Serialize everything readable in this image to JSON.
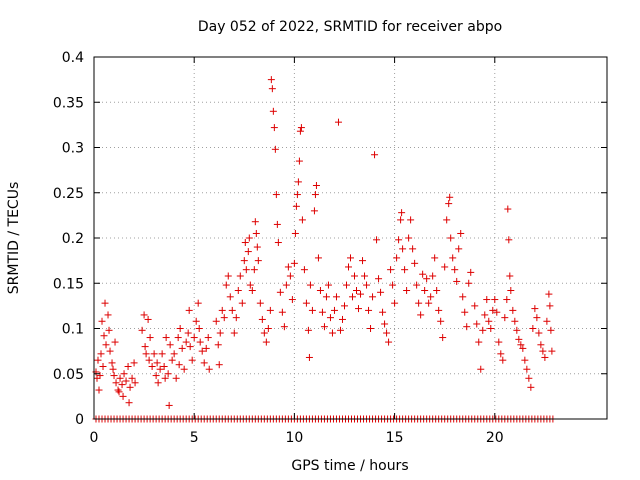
{
  "chart_data": {
    "type": "scatter",
    "title": "Day 052 of 2022, SRMTID for receiver abpo",
    "xlabel": "GPS time / hours",
    "ylabel": "SRMTID / TECUs",
    "xlim": [
      0,
      25.6
    ],
    "ylim": [
      0,
      0.4
    ],
    "x_ticks": [
      0,
      5,
      10,
      15,
      20
    ],
    "x_tick_labels": [
      "0",
      "5",
      "10",
      "15",
      "20"
    ],
    "y_ticks": [
      0,
      0.05,
      0.1,
      0.15,
      0.2,
      0.25,
      0.3,
      0.35,
      0.4
    ],
    "y_tick_labels": [
      "0",
      "0.05",
      "0.1",
      "0.15",
      "0.2",
      "0.25",
      "0.3",
      "0.35",
      "0.4"
    ],
    "grid": true,
    "marker": "plus",
    "marker_color": "#dd0000",
    "series": [
      {
        "name": "SRMTID",
        "points": [
          [
            0.1,
            0.052
          ],
          [
            0.15,
            0.045
          ],
          [
            0.2,
            0.065
          ],
          [
            0.25,
            0.032
          ],
          [
            0.3,
            0.048
          ],
          [
            0.35,
            0.072
          ],
          [
            0.4,
            0.108
          ],
          [
            0.45,
            0.058
          ],
          [
            0.5,
            0.092
          ],
          [
            0.55,
            0.128
          ],
          [
            0.6,
            0.082
          ],
          [
            0.7,
            0.115
          ],
          [
            0.75,
            0.098
          ],
          [
            0.8,
            0.075
          ],
          [
            0.9,
            0.062
          ],
          [
            0.95,
            0.055
          ],
          [
            1.0,
            0.048
          ],
          [
            1.05,
            0.085
          ],
          [
            1.1,
            0.04
          ],
          [
            1.2,
            0.032
          ],
          [
            1.25,
            0.03
          ],
          [
            1.3,
            0.045
          ],
          [
            1.4,
            0.038
          ],
          [
            1.45,
            0.025
          ],
          [
            1.5,
            0.05
          ],
          [
            1.6,
            0.042
          ],
          [
            1.7,
            0.058
          ],
          [
            1.75,
            0.018
          ],
          [
            1.8,
            0.035
          ],
          [
            1.9,
            0.045
          ],
          [
            2.0,
            0.062
          ],
          [
            2.05,
            0.04
          ],
          [
            2.4,
            0.098
          ],
          [
            2.5,
            0.115
          ],
          [
            2.55,
            0.08
          ],
          [
            2.6,
            0.072
          ],
          [
            2.7,
            0.11
          ],
          [
            2.75,
            0.065
          ],
          [
            2.8,
            0.09
          ],
          [
            2.9,
            0.058
          ],
          [
            3.0,
            0.072
          ],
          [
            3.1,
            0.048
          ],
          [
            3.15,
            0.062
          ],
          [
            3.2,
            0.04
          ],
          [
            3.3,
            0.055
          ],
          [
            3.4,
            0.072
          ],
          [
            3.5,
            0.058
          ],
          [
            3.55,
            0.045
          ],
          [
            3.6,
            0.09
          ],
          [
            3.7,
            0.05
          ],
          [
            3.75,
            0.015
          ],
          [
            3.8,
            0.082
          ],
          [
            3.9,
            0.065
          ],
          [
            4.0,
            0.072
          ],
          [
            4.1,
            0.045
          ],
          [
            4.2,
            0.09
          ],
          [
            4.25,
            0.06
          ],
          [
            4.3,
            0.1
          ],
          [
            4.4,
            0.078
          ],
          [
            4.5,
            0.055
          ],
          [
            4.6,
            0.085
          ],
          [
            4.7,
            0.095
          ],
          [
            4.75,
            0.12
          ],
          [
            4.8,
            0.08
          ],
          [
            4.9,
            0.065
          ],
          [
            5.0,
            0.09
          ],
          [
            5.1,
            0.108
          ],
          [
            5.2,
            0.128
          ],
          [
            5.25,
            0.1
          ],
          [
            5.3,
            0.085
          ],
          [
            5.4,
            0.075
          ],
          [
            5.5,
            0.062
          ],
          [
            5.6,
            0.078
          ],
          [
            5.7,
            0.09
          ],
          [
            5.75,
            0.055
          ],
          [
            6.1,
            0.108
          ],
          [
            6.2,
            0.082
          ],
          [
            6.25,
            0.06
          ],
          [
            6.3,
            0.095
          ],
          [
            6.4,
            0.12
          ],
          [
            6.5,
            0.112
          ],
          [
            6.6,
            0.148
          ],
          [
            6.7,
            0.158
          ],
          [
            6.8,
            0.135
          ],
          [
            6.9,
            0.12
          ],
          [
            7.0,
            0.095
          ],
          [
            7.1,
            0.112
          ],
          [
            7.2,
            0.142
          ],
          [
            7.3,
            0.158
          ],
          [
            7.4,
            0.128
          ],
          [
            7.5,
            0.175
          ],
          [
            7.55,
            0.195
          ],
          [
            7.6,
            0.165
          ],
          [
            7.7,
            0.185
          ],
          [
            7.75,
            0.2
          ],
          [
            7.8,
            0.148
          ],
          [
            7.9,
            0.142
          ],
          [
            8.0,
            0.165
          ],
          [
            8.05,
            0.218
          ],
          [
            8.1,
            0.205
          ],
          [
            8.15,
            0.19
          ],
          [
            8.2,
            0.175
          ],
          [
            8.3,
            0.128
          ],
          [
            8.4,
            0.11
          ],
          [
            8.5,
            0.095
          ],
          [
            8.6,
            0.085
          ],
          [
            8.7,
            0.1
          ],
          [
            8.8,
            0.12
          ],
          [
            8.85,
            0.375
          ],
          [
            8.9,
            0.365
          ],
          [
            8.95,
            0.34
          ],
          [
            9.0,
            0.322
          ],
          [
            9.05,
            0.298
          ],
          [
            9.1,
            0.248
          ],
          [
            9.15,
            0.215
          ],
          [
            9.2,
            0.195
          ],
          [
            9.3,
            0.14
          ],
          [
            9.4,
            0.118
          ],
          [
            9.5,
            0.102
          ],
          [
            9.6,
            0.148
          ],
          [
            9.7,
            0.168
          ],
          [
            9.8,
            0.158
          ],
          [
            9.9,
            0.132
          ],
          [
            10.0,
            0.172
          ],
          [
            10.05,
            0.205
          ],
          [
            10.1,
            0.235
          ],
          [
            10.15,
            0.248
          ],
          [
            10.2,
            0.262
          ],
          [
            10.25,
            0.285
          ],
          [
            10.3,
            0.318
          ],
          [
            10.35,
            0.322
          ],
          [
            10.4,
            0.22
          ],
          [
            10.5,
            0.165
          ],
          [
            10.6,
            0.128
          ],
          [
            10.7,
            0.098
          ],
          [
            10.75,
            0.068
          ],
          [
            10.8,
            0.148
          ],
          [
            10.9,
            0.12
          ],
          [
            11.0,
            0.23
          ],
          [
            11.05,
            0.248
          ],
          [
            11.1,
            0.258
          ],
          [
            11.2,
            0.178
          ],
          [
            11.3,
            0.142
          ],
          [
            11.4,
            0.118
          ],
          [
            11.5,
            0.102
          ],
          [
            11.6,
            0.135
          ],
          [
            11.7,
            0.148
          ],
          [
            11.8,
            0.112
          ],
          [
            11.9,
            0.095
          ],
          [
            12.0,
            0.12
          ],
          [
            12.1,
            0.135
          ],
          [
            12.2,
            0.328
          ],
          [
            12.3,
            0.098
          ],
          [
            12.4,
            0.11
          ],
          [
            12.5,
            0.125
          ],
          [
            12.6,
            0.148
          ],
          [
            12.7,
            0.168
          ],
          [
            12.8,
            0.178
          ],
          [
            12.9,
            0.135
          ],
          [
            13.0,
            0.158
          ],
          [
            13.1,
            0.142
          ],
          [
            13.2,
            0.122
          ],
          [
            13.3,
            0.138
          ],
          [
            13.4,
            0.175
          ],
          [
            13.5,
            0.158
          ],
          [
            13.6,
            0.148
          ],
          [
            13.7,
            0.12
          ],
          [
            13.8,
            0.1
          ],
          [
            13.9,
            0.135
          ],
          [
            14.0,
            0.292
          ],
          [
            14.1,
            0.198
          ],
          [
            14.2,
            0.155
          ],
          [
            14.3,
            0.14
          ],
          [
            14.4,
            0.118
          ],
          [
            14.5,
            0.105
          ],
          [
            14.6,
            0.095
          ],
          [
            14.7,
            0.085
          ],
          [
            14.8,
            0.165
          ],
          [
            14.9,
            0.148
          ],
          [
            15.0,
            0.128
          ],
          [
            15.1,
            0.178
          ],
          [
            15.2,
            0.198
          ],
          [
            15.3,
            0.22
          ],
          [
            15.35,
            0.228
          ],
          [
            15.4,
            0.188
          ],
          [
            15.5,
            0.165
          ],
          [
            15.6,
            0.142
          ],
          [
            15.7,
            0.2
          ],
          [
            15.8,
            0.22
          ],
          [
            15.9,
            0.188
          ],
          [
            16.0,
            0.172
          ],
          [
            16.1,
            0.148
          ],
          [
            16.2,
            0.128
          ],
          [
            16.3,
            0.115
          ],
          [
            16.4,
            0.16
          ],
          [
            16.5,
            0.142
          ],
          [
            16.6,
            0.155
          ],
          [
            16.7,
            0.128
          ],
          [
            16.8,
            0.135
          ],
          [
            16.9,
            0.158
          ],
          [
            17.0,
            0.178
          ],
          [
            17.1,
            0.142
          ],
          [
            17.2,
            0.12
          ],
          [
            17.3,
            0.108
          ],
          [
            17.4,
            0.09
          ],
          [
            17.5,
            0.168
          ],
          [
            17.6,
            0.22
          ],
          [
            17.7,
            0.238
          ],
          [
            17.75,
            0.245
          ],
          [
            17.8,
            0.2
          ],
          [
            17.9,
            0.178
          ],
          [
            18.0,
            0.165
          ],
          [
            18.1,
            0.152
          ],
          [
            18.2,
            0.188
          ],
          [
            18.3,
            0.205
          ],
          [
            18.4,
            0.135
          ],
          [
            18.5,
            0.118
          ],
          [
            18.6,
            0.102
          ],
          [
            18.7,
            0.15
          ],
          [
            18.8,
            0.162
          ],
          [
            19.0,
            0.125
          ],
          [
            19.1,
            0.105
          ],
          [
            19.2,
            0.085
          ],
          [
            19.3,
            0.055
          ],
          [
            19.4,
            0.098
          ],
          [
            19.5,
            0.115
          ],
          [
            19.6,
            0.132
          ],
          [
            19.7,
            0.108
          ],
          [
            19.8,
            0.1
          ],
          [
            19.9,
            0.12
          ],
          [
            20.0,
            0.132
          ],
          [
            20.1,
            0.118
          ],
          [
            20.2,
            0.085
          ],
          [
            20.3,
            0.072
          ],
          [
            20.4,
            0.065
          ],
          [
            20.5,
            0.112
          ],
          [
            20.6,
            0.132
          ],
          [
            20.65,
            0.232
          ],
          [
            20.7,
            0.198
          ],
          [
            20.75,
            0.158
          ],
          [
            20.8,
            0.142
          ],
          [
            20.9,
            0.12
          ],
          [
            21.0,
            0.108
          ],
          [
            21.1,
            0.098
          ],
          [
            21.2,
            0.088
          ],
          [
            21.3,
            0.082
          ],
          [
            21.4,
            0.078
          ],
          [
            21.5,
            0.065
          ],
          [
            21.6,
            0.055
          ],
          [
            21.7,
            0.045
          ],
          [
            21.8,
            0.035
          ],
          [
            21.9,
            0.1
          ],
          [
            22.0,
            0.122
          ],
          [
            22.1,
            0.112
          ],
          [
            22.2,
            0.095
          ],
          [
            22.3,
            0.082
          ],
          [
            22.4,
            0.075
          ],
          [
            22.5,
            0.068
          ],
          [
            22.6,
            0.108
          ],
          [
            22.7,
            0.138
          ],
          [
            22.75,
            0.125
          ],
          [
            22.8,
            0.098
          ],
          [
            22.85,
            0.075
          ]
        ]
      },
      {
        "name": "zero values",
        "x_start": 0.1,
        "x_end": 22.9,
        "x_step": 0.15,
        "y": 0
      }
    ]
  }
}
